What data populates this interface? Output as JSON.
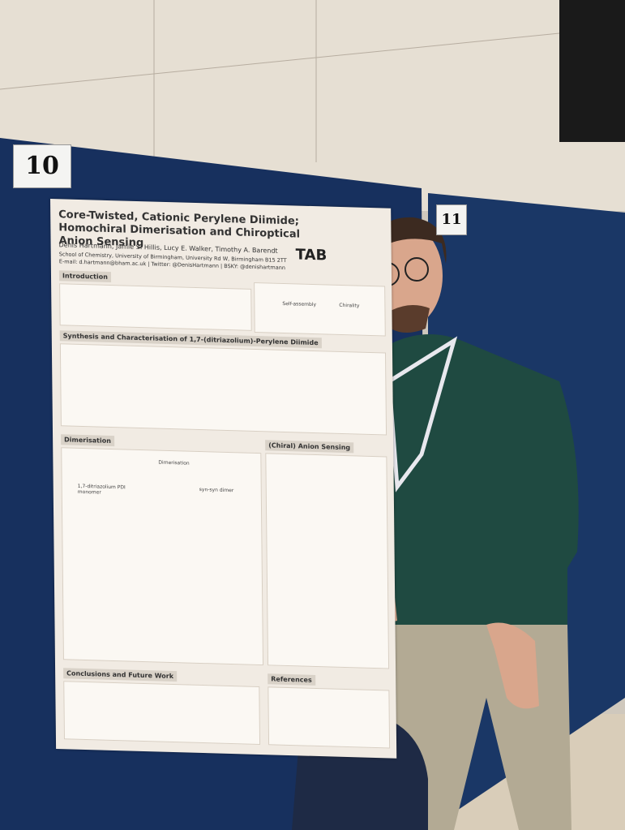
{
  "board_numbers": [
    "10",
    "11"
  ],
  "poster": {
    "title": "Core-Twisted, Cationic Perylene Diimide; Homochiral Dimerisation and Chiroptical Anion Sensing",
    "authors": "Denis Hartmann, Jamie S. Hillis, Lucy E. Walker, Timothy A. Barendt",
    "affiliation": "School of Chemistry, University of Birmingham, University Rd W, Birmingham B15 2TT",
    "contact": "E-mail: d.hartmann@bham.ac.uk | Twitter: @DenisHartmann | BSKY: @denishartmann",
    "logo": "TAB",
    "sections": [
      "Introduction",
      "Synthesis and Characterisation of 1,7-(ditriazolium)-Perylene Diimide",
      "Dimerisation",
      "(Chiral) Anion Sensing",
      "Conclusions and Future Work",
      "References"
    ],
    "labels": [
      "Self-assembly",
      "Chirality",
      "Dimerisation",
      "1,7-ditriazolium PDI monomer",
      "syn-syn dimer"
    ]
  }
}
